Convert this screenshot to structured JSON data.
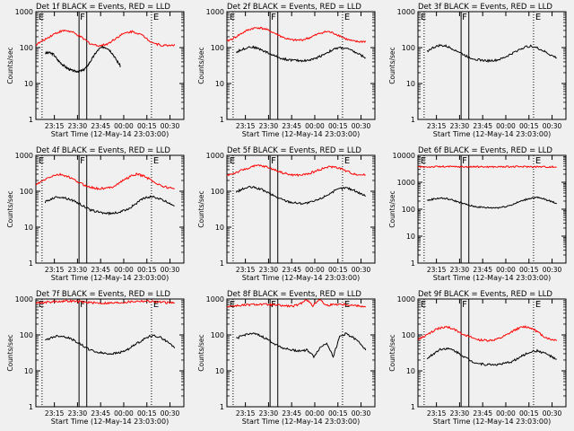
{
  "figure": {
    "background": "#f0f0f0",
    "colors": {
      "events": "#000000",
      "lld": "#ff0000",
      "axes": "#000000"
    }
  },
  "chart_data": [
    {
      "type": "line",
      "title": "Det 1f BLACK = Events, RED = LLD",
      "xlabel": "Start Time (12-May-14 23:03:00)",
      "ylabel": "Counts/sec",
      "x_ticks": [
        "23:15",
        "23:30",
        "23:45",
        "00:00",
        "00:15",
        "00:30"
      ],
      "yscale": "log",
      "ylim": [
        1,
        1000
      ],
      "y_ticks": [
        "1",
        "10",
        "100",
        "1000"
      ],
      "markers": {
        "E_left": "E",
        "F": "F",
        "E_right": "E"
      },
      "series": [
        {
          "name": "Events",
          "color": "#000000",
          "x_min": [
            6,
            55
          ],
          "values": [
            70,
            72,
            65,
            45,
            35,
            28,
            24,
            22,
            22,
            23,
            30,
            45,
            70,
            95,
            105,
            95,
            70,
            45,
            30
          ]
        },
        {
          "name": "LLD",
          "color": "#ff0000",
          "x_min": [
            0,
            90
          ],
          "values": [
            120,
            150,
            190,
            240,
            280,
            300,
            270,
            220,
            170,
            130,
            115,
            115,
            130,
            170,
            220,
            260,
            280,
            250,
            200,
            150,
            125,
            115,
            115,
            120
          ]
        }
      ]
    },
    {
      "type": "line",
      "title": "Det 2f BLACK = Events, RED = LLD",
      "xlabel": "Start Time (12-May-14 23:03:00)",
      "ylabel": "Counts/sec",
      "x_ticks": [
        "23:15",
        "23:30",
        "23:45",
        "00:00",
        "00:15",
        "00:30"
      ],
      "yscale": "log",
      "ylim": [
        1,
        1000
      ],
      "y_ticks": [
        "1",
        "10",
        "100",
        "1000"
      ],
      "markers": {
        "E_left": "E",
        "F": "F",
        "E_right": "E"
      },
      "series": [
        {
          "name": "Events",
          "color": "#000000",
          "x_min": [
            6,
            90
          ],
          "values": [
            75,
            90,
            105,
            100,
            85,
            70,
            58,
            50,
            46,
            44,
            43,
            44,
            48,
            58,
            72,
            88,
            100,
            95,
            80,
            65,
            52
          ]
        },
        {
          "name": "LLD",
          "color": "#ff0000",
          "x_min": [
            0,
            90
          ],
          "values": [
            150,
            180,
            230,
            290,
            340,
            360,
            330,
            280,
            230,
            190,
            165,
            160,
            165,
            185,
            220,
            260,
            280,
            250,
            210,
            170,
            150,
            145,
            150
          ]
        }
      ]
    },
    {
      "type": "line",
      "title": "Det 3f BLACK = Events, RED = LLD",
      "xlabel": "Start Time (12-May-14 23:03:00)",
      "ylabel": "Counts/sec",
      "x_ticks": [
        "23:15",
        "23:30",
        "23:45",
        "00:00",
        "00:15",
        "00:30"
      ],
      "yscale": "log",
      "ylim": [
        1,
        1000
      ],
      "y_ticks": [
        "1",
        "10",
        "100",
        "1000"
      ],
      "markers": {
        "E_left": "E",
        "F": "F",
        "E_right": "E"
      },
      "series": [
        {
          "name": "Events",
          "color": "#000000",
          "x_min": [
            6,
            90
          ],
          "values": [
            80,
            100,
            115,
            110,
            95,
            78,
            62,
            52,
            47,
            44,
            43,
            44,
            48,
            58,
            72,
            90,
            105,
            110,
            95,
            78,
            62,
            52
          ]
        }
      ]
    },
    {
      "type": "line",
      "title": "Det 4f BLACK = Events, RED = LLD",
      "xlabel": "Start Time (12-May-14 23:03:00)",
      "ylabel": "Counts/sec",
      "x_ticks": [
        "23:15",
        "23:30",
        "23:45",
        "00:00",
        "00:15",
        "00:30"
      ],
      "yscale": "log",
      "ylim": [
        1,
        1000
      ],
      "y_ticks": [
        "1",
        "10",
        "100",
        "1000"
      ],
      "markers": {
        "E_left": "E",
        "F": "F",
        "E_right": "E"
      },
      "series": [
        {
          "name": "Events",
          "color": "#000000",
          "x_min": [
            6,
            90
          ],
          "values": [
            50,
            62,
            70,
            66,
            58,
            48,
            38,
            30,
            27,
            25,
            24,
            25,
            28,
            34,
            45,
            60,
            70,
            68,
            58,
            48,
            40
          ]
        },
        {
          "name": "LLD",
          "color": "#ff0000",
          "x_min": [
            0,
            90
          ],
          "values": [
            150,
            190,
            240,
            280,
            290,
            260,
            210,
            170,
            140,
            125,
            118,
            120,
            130,
            160,
            210,
            260,
            300,
            270,
            220,
            170,
            140,
            125,
            120
          ]
        }
      ]
    },
    {
      "type": "line",
      "title": "Det 5f BLACK = Events, RED = LLD",
      "xlabel": "Start Time (12-May-14 23:03:00)",
      "ylabel": "Counts/sec",
      "x_ticks": [
        "23:15",
        "23:30",
        "23:45",
        "00:00",
        "00:15",
        "00:30"
      ],
      "yscale": "log",
      "ylim": [
        1,
        1000
      ],
      "y_ticks": [
        "1",
        "10",
        "100",
        "1000"
      ],
      "markers": {
        "E_left": "E",
        "F": "F",
        "E_right": "E"
      },
      "series": [
        {
          "name": "Events",
          "color": "#000000",
          "x_min": [
            6,
            90
          ],
          "values": [
            95,
            115,
            130,
            125,
            110,
            90,
            72,
            60,
            52,
            48,
            46,
            47,
            52,
            62,
            78,
            98,
            118,
            125,
            110,
            90,
            75
          ]
        },
        {
          "name": "LLD",
          "color": "#ff0000",
          "x_min": [
            0,
            90
          ],
          "values": [
            280,
            310,
            360,
            420,
            480,
            520,
            490,
            430,
            370,
            320,
            290,
            280,
            285,
            310,
            360,
            420,
            470,
            480,
            430,
            360,
            310,
            290,
            285
          ]
        }
      ]
    },
    {
      "type": "line",
      "title": "Det 6f BLACK = Events, RED = LLD",
      "xlabel": "Start Time (12-May-14 23:03:00)",
      "ylabel": "Counts/sec",
      "x_ticks": [
        "23:15",
        "23:30",
        "23:45",
        "00:00",
        "00:15",
        "00:30"
      ],
      "yscale": "log",
      "ylim": [
        1,
        10000
      ],
      "y_ticks": [
        "1",
        "10",
        "100",
        "1000",
        "10000"
      ],
      "markers": {
        "E_left": "E",
        "F": "F",
        "E_right": "E"
      },
      "series": [
        {
          "name": "Events",
          "color": "#000000",
          "x_min": [
            6,
            90
          ],
          "values": [
            210,
            240,
            260,
            245,
            215,
            180,
            150,
            130,
            120,
            115,
            113,
            115,
            125,
            145,
            180,
            220,
            260,
            270,
            240,
            200,
            165
          ]
        },
        {
          "name": "LLD",
          "color": "#ff0000",
          "x_min": [
            0,
            90
          ],
          "values": [
            3700,
            3750,
            3800,
            3800,
            3780,
            3760,
            3750,
            3750,
            3760,
            3780,
            3800,
            3800,
            3780,
            3750,
            3700
          ]
        }
      ]
    },
    {
      "type": "line",
      "title": "Det 7f BLACK = Events, RED = LLD",
      "xlabel": "Start Time (12-May-14 23:03:00)",
      "ylabel": "Counts/sec",
      "x_ticks": [
        "23:15",
        "23:30",
        "23:45",
        "00:00",
        "00:15",
        "00:30"
      ],
      "yscale": "log",
      "ylim": [
        1,
        1000
      ],
      "y_ticks": [
        "1",
        "10",
        "100",
        "1000"
      ],
      "markers": {
        "E_left": "E",
        "F": "F",
        "E_right": "E"
      },
      "series": [
        {
          "name": "Events",
          "color": "#000000",
          "x_min": [
            6,
            90
          ],
          "values": [
            70,
            85,
            95,
            90,
            78,
            62,
            48,
            38,
            33,
            31,
            30,
            31,
            34,
            42,
            55,
            72,
            90,
            95,
            82,
            62,
            45
          ]
        },
        {
          "name": "LLD",
          "color": "#ff0000",
          "x_min": [
            0,
            90
          ],
          "values": [
            780,
            800,
            820,
            850,
            870,
            880,
            860,
            830,
            800,
            780,
            770,
            770,
            780,
            800,
            830,
            860,
            880,
            870,
            840,
            810,
            790,
            780
          ]
        }
      ]
    },
    {
      "type": "line",
      "title": "Det 8f BLACK = Events, RED = LLD",
      "xlabel": "Start Time (12-May-14 23:03:00)",
      "ylabel": "Counts/sec",
      "x_ticks": [
        "23:15",
        "23:30",
        "23:45",
        "00:00",
        "00:15",
        "00:30"
      ],
      "yscale": "log",
      "ylim": [
        1,
        1000
      ],
      "y_ticks": [
        "1",
        "10",
        "100",
        "1000"
      ],
      "markers": {
        "E_left": "E",
        "F": "F",
        "E_right": "E"
      },
      "series": [
        {
          "name": "Events",
          "color": "#000000",
          "x_min": [
            6,
            90
          ],
          "values": [
            80,
            95,
            110,
            105,
            90,
            72,
            56,
            45,
            40,
            37,
            36,
            38,
            25,
            45,
            60,
            25,
            90,
            110,
            85,
            62,
            40
          ]
        },
        {
          "name": "LLD",
          "color": "#ff0000",
          "x_min": [
            0,
            90
          ],
          "values": [
            620,
            640,
            660,
            680,
            700,
            710,
            700,
            680,
            660,
            640,
            630,
            700,
            1000,
            640,
            1000,
            660,
            700,
            720,
            700,
            670,
            640,
            620
          ]
        }
      ]
    },
    {
      "type": "line",
      "title": "Det 9f BLACK = Events, RED = LLD",
      "xlabel": "Start Time (12-May-14 23:03:00)",
      "ylabel": "Counts/sec",
      "x_ticks": [
        "23:15",
        "23:30",
        "23:45",
        "00:00",
        "00:15",
        "00:30"
      ],
      "yscale": "log",
      "ylim": [
        1,
        1000
      ],
      "y_ticks": [
        "1",
        "10",
        "100",
        "1000"
      ],
      "markers": {
        "E_left": "E",
        "F": "F",
        "E_right": "E"
      },
      "series": [
        {
          "name": "Events",
          "color": "#000000",
          "x_min": [
            6,
            90
          ],
          "values": [
            22,
            30,
            40,
            42,
            38,
            30,
            23,
            18,
            16,
            15,
            15,
            15,
            16,
            18,
            22,
            28,
            34,
            36,
            32,
            26,
            20
          ]
        },
        {
          "name": "LLD",
          "color": "#ff0000",
          "x_min": [
            0,
            90
          ],
          "values": [
            75,
            90,
            115,
            145,
            165,
            160,
            135,
            110,
            90,
            78,
            72,
            70,
            72,
            80,
            98,
            125,
            155,
            170,
            155,
            120,
            90,
            75,
            72
          ]
        }
      ]
    }
  ]
}
